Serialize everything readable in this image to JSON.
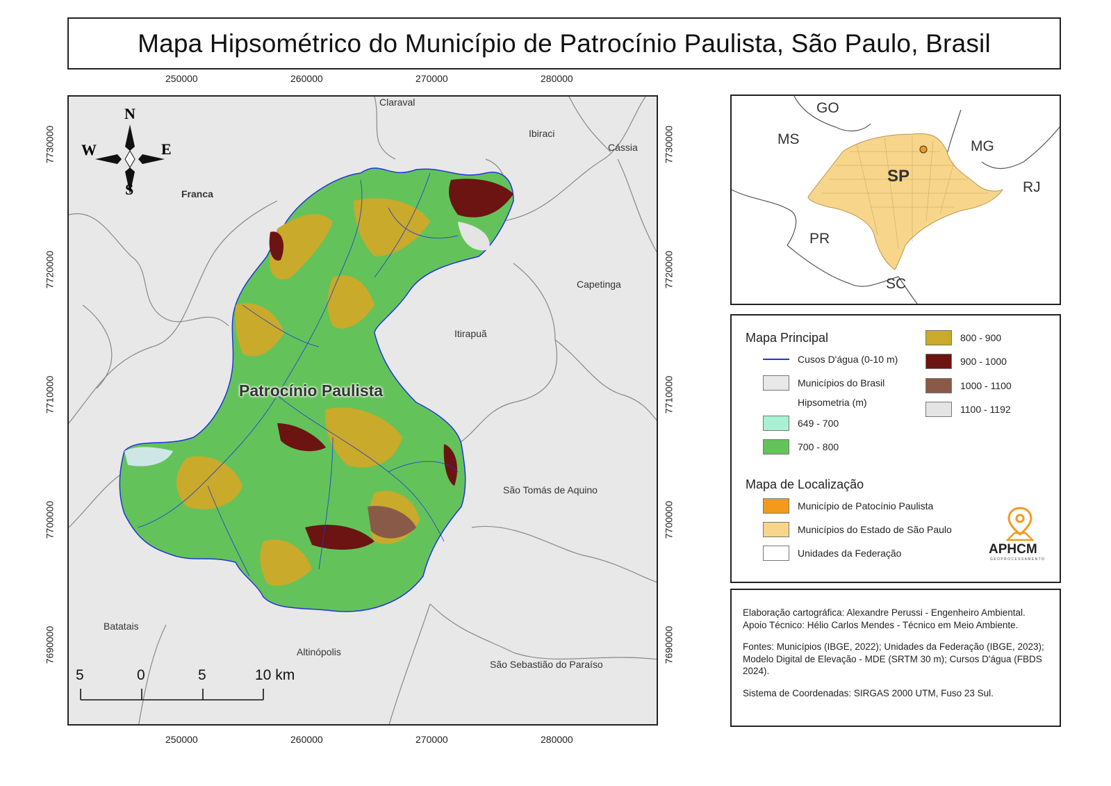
{
  "title": "Mapa Hipsométrico do Município de Patrocínio Paulista, São Paulo, Brasil",
  "main_map": {
    "x_ticks": [
      "250000",
      "260000",
      "270000",
      "280000"
    ],
    "y_ticks": [
      "7730000",
      "7720000",
      "7710000",
      "7700000",
      "7690000"
    ],
    "compass": {
      "n": "N",
      "s": "S",
      "e": "E",
      "w": "W"
    },
    "municipality_label": "Patrocínio Paulista",
    "place_labels": {
      "claraval": "Claraval",
      "ibiraci": "Ibiraci",
      "cassia": "Cássia",
      "franca": "Franca",
      "capetinga": "Capetinga",
      "itirapua": "Itirapuã",
      "sao_tomas": "São Tomás de Aquino",
      "batatais": "Batatais",
      "altinopolis": "Altinópolis",
      "sao_sebastiao": "São Sebastião do Paraíso"
    },
    "scale": {
      "labels": [
        "5",
        "0",
        "5",
        "10 km"
      ]
    }
  },
  "location_map": {
    "labels": {
      "go": "GO",
      "ms": "MS",
      "mg": "MG",
      "sp": "SP",
      "rj": "RJ",
      "pr": "PR",
      "sc": "SC"
    }
  },
  "legend": {
    "main_heading": "Mapa Principal",
    "watercourse": "Cusos D'água (0-10 m)",
    "municipios_brasil": "Municípios do Brasil",
    "hipsometria_heading": "Hipsometria (m)",
    "classes": [
      {
        "label": "649 - 700",
        "color": "#aaf0d4"
      },
      {
        "label": "700 - 800",
        "color": "#63c35a"
      },
      {
        "label": "800 - 900",
        "color": "#c9aa2a"
      },
      {
        "label": "900 - 1000",
        "color": "#6b1412"
      },
      {
        "label": "1000 - 1100",
        "color": "#8a5a48"
      },
      {
        "label": "1100 - 1192",
        "color": "#e4e4e4"
      }
    ],
    "location_heading": "Mapa de Localização",
    "municipio_patrocinio": "Município de Patocínio Paulista",
    "municipios_sp": "Municípios do Estado de São Paulo",
    "unidades_federacao": "Unidades da Federação",
    "logo_text": "APHCM",
    "logo_sub": "GEOPROCESSAMENTO"
  },
  "credits": {
    "p1": "Elaboração cartográfica: Alexandre Perussi - Engenheiro Ambiental. Apoio Técnico: Hélio Carlos Mendes - Técnico em Meio Ambiente.",
    "p2": "Fontes: Municípios (IBGE, 2022); Unidades da Federação (IBGE, 2023); Modelo Digital de Elevação - MDE (SRTM 30 m); Cursos D'água (FBDS 2024).",
    "p3": "Sistema de Coordenadas: SIRGAS 2000 UTM, Fuso 23 Sul."
  },
  "colors": {
    "orange": "#f39a1e",
    "sp_fill": "#f7d58a",
    "water": "#2233dd",
    "background": "#e8e8e8"
  }
}
